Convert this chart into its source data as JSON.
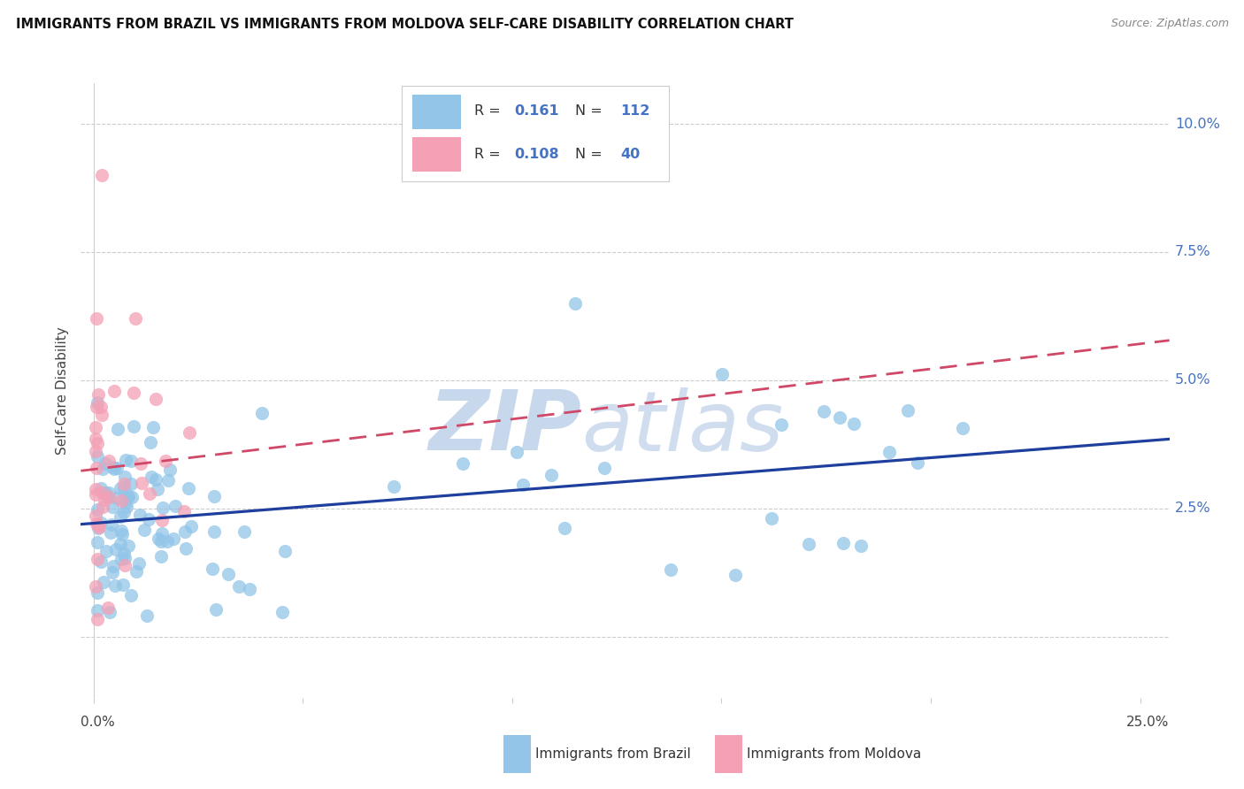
{
  "title": "IMMIGRANTS FROM BRAZIL VS IMMIGRANTS FROM MOLDOVA SELF-CARE DISABILITY CORRELATION CHART",
  "source": "Source: ZipAtlas.com",
  "ylabel": "Self-Care Disability",
  "brazil_label": "Immigrants from Brazil",
  "moldova_label": "Immigrants from Moldova",
  "brazil_R": "0.161",
  "brazil_N": "112",
  "moldova_R": "0.108",
  "moldova_N": "40",
  "brazil_color": "#92C5E8",
  "moldova_color": "#F4A0B5",
  "brazil_line_color": "#1E3F9E",
  "moldova_line_color": "#D04868",
  "watermark_zip": "ZIP",
  "watermark_atlas": "atlas",
  "background_color": "#FFFFFF",
  "grid_color": "#CCCCCC",
  "right_tick_color": "#4472C4",
  "legend_border_color": "#CCCCCC",
  "ytick_vals": [
    0.0,
    0.025,
    0.05,
    0.075,
    0.1
  ],
  "ytick_labels": [
    "",
    "2.5%",
    "5.0%",
    "7.5%",
    "10.0%"
  ],
  "xlim_min": -0.003,
  "xlim_max": 0.257,
  "ylim_min": -0.012,
  "ylim_max": 0.108
}
